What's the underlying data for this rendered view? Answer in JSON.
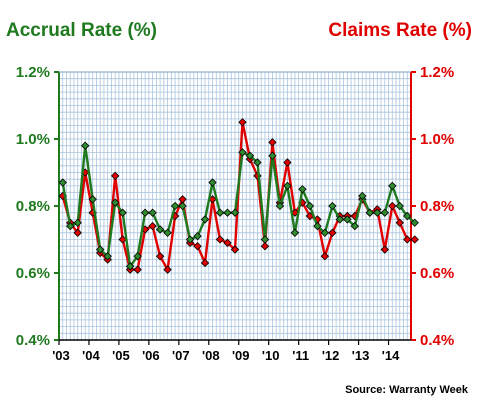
{
  "chart_data": {
    "type": "line",
    "title_left": "Accrual Rate (%)",
    "title_right": "Claims Rate (%)",
    "source": "Source: Warranty Week",
    "ylim": [
      0.4,
      1.2
    ],
    "yticks_left": [
      "0.4%",
      "0.6%",
      "0.8%",
      "1.0%",
      "1.2%"
    ],
    "yticks_right": [
      "0.4%",
      "0.6%",
      "0.8%",
      "1.0%",
      "1.2%"
    ],
    "xtick_labels": [
      "'03",
      "'04",
      "'05",
      "'06",
      "'07",
      "'08",
      "'09",
      "'10",
      "'11",
      "'12",
      "'13",
      "'14"
    ],
    "quarters_per_year": 4,
    "grid": true,
    "series": [
      {
        "name": "Accrual Rate",
        "axis": "left",
        "color": "#1f7a1f",
        "marker_color": "#2e8b2e",
        "values": [
          0.87,
          0.74,
          0.75,
          0.98,
          0.82,
          0.67,
          0.65,
          0.81,
          0.78,
          0.62,
          0.65,
          0.78,
          0.78,
          0.73,
          0.72,
          0.8,
          0.8,
          0.7,
          0.71,
          0.76,
          0.87,
          0.78,
          0.78,
          0.78,
          0.96,
          0.95,
          0.93,
          0.7,
          0.95,
          0.8,
          0.86,
          0.72,
          0.85,
          0.8,
          0.74,
          0.72,
          0.8,
          0.76,
          0.76,
          0.74,
          0.83,
          0.78,
          0.78,
          0.78,
          0.86,
          0.8,
          0.77,
          0.75
        ]
      },
      {
        "name": "Claims Rate",
        "axis": "right",
        "color": "#e00000",
        "marker_color": "#e00000",
        "values": [
          0.83,
          0.75,
          0.72,
          0.9,
          0.78,
          0.66,
          0.64,
          0.89,
          0.7,
          0.61,
          0.61,
          0.73,
          0.74,
          0.65,
          0.61,
          0.77,
          0.82,
          0.69,
          0.68,
          0.63,
          0.82,
          0.7,
          0.69,
          0.67,
          1.05,
          0.94,
          0.89,
          0.68,
          0.99,
          0.81,
          0.93,
          0.78,
          0.81,
          0.77,
          0.76,
          0.65,
          0.72,
          0.77,
          0.77,
          0.77,
          0.82,
          0.78,
          0.79,
          0.67,
          0.8,
          0.75,
          0.7,
          0.7
        ]
      }
    ]
  }
}
